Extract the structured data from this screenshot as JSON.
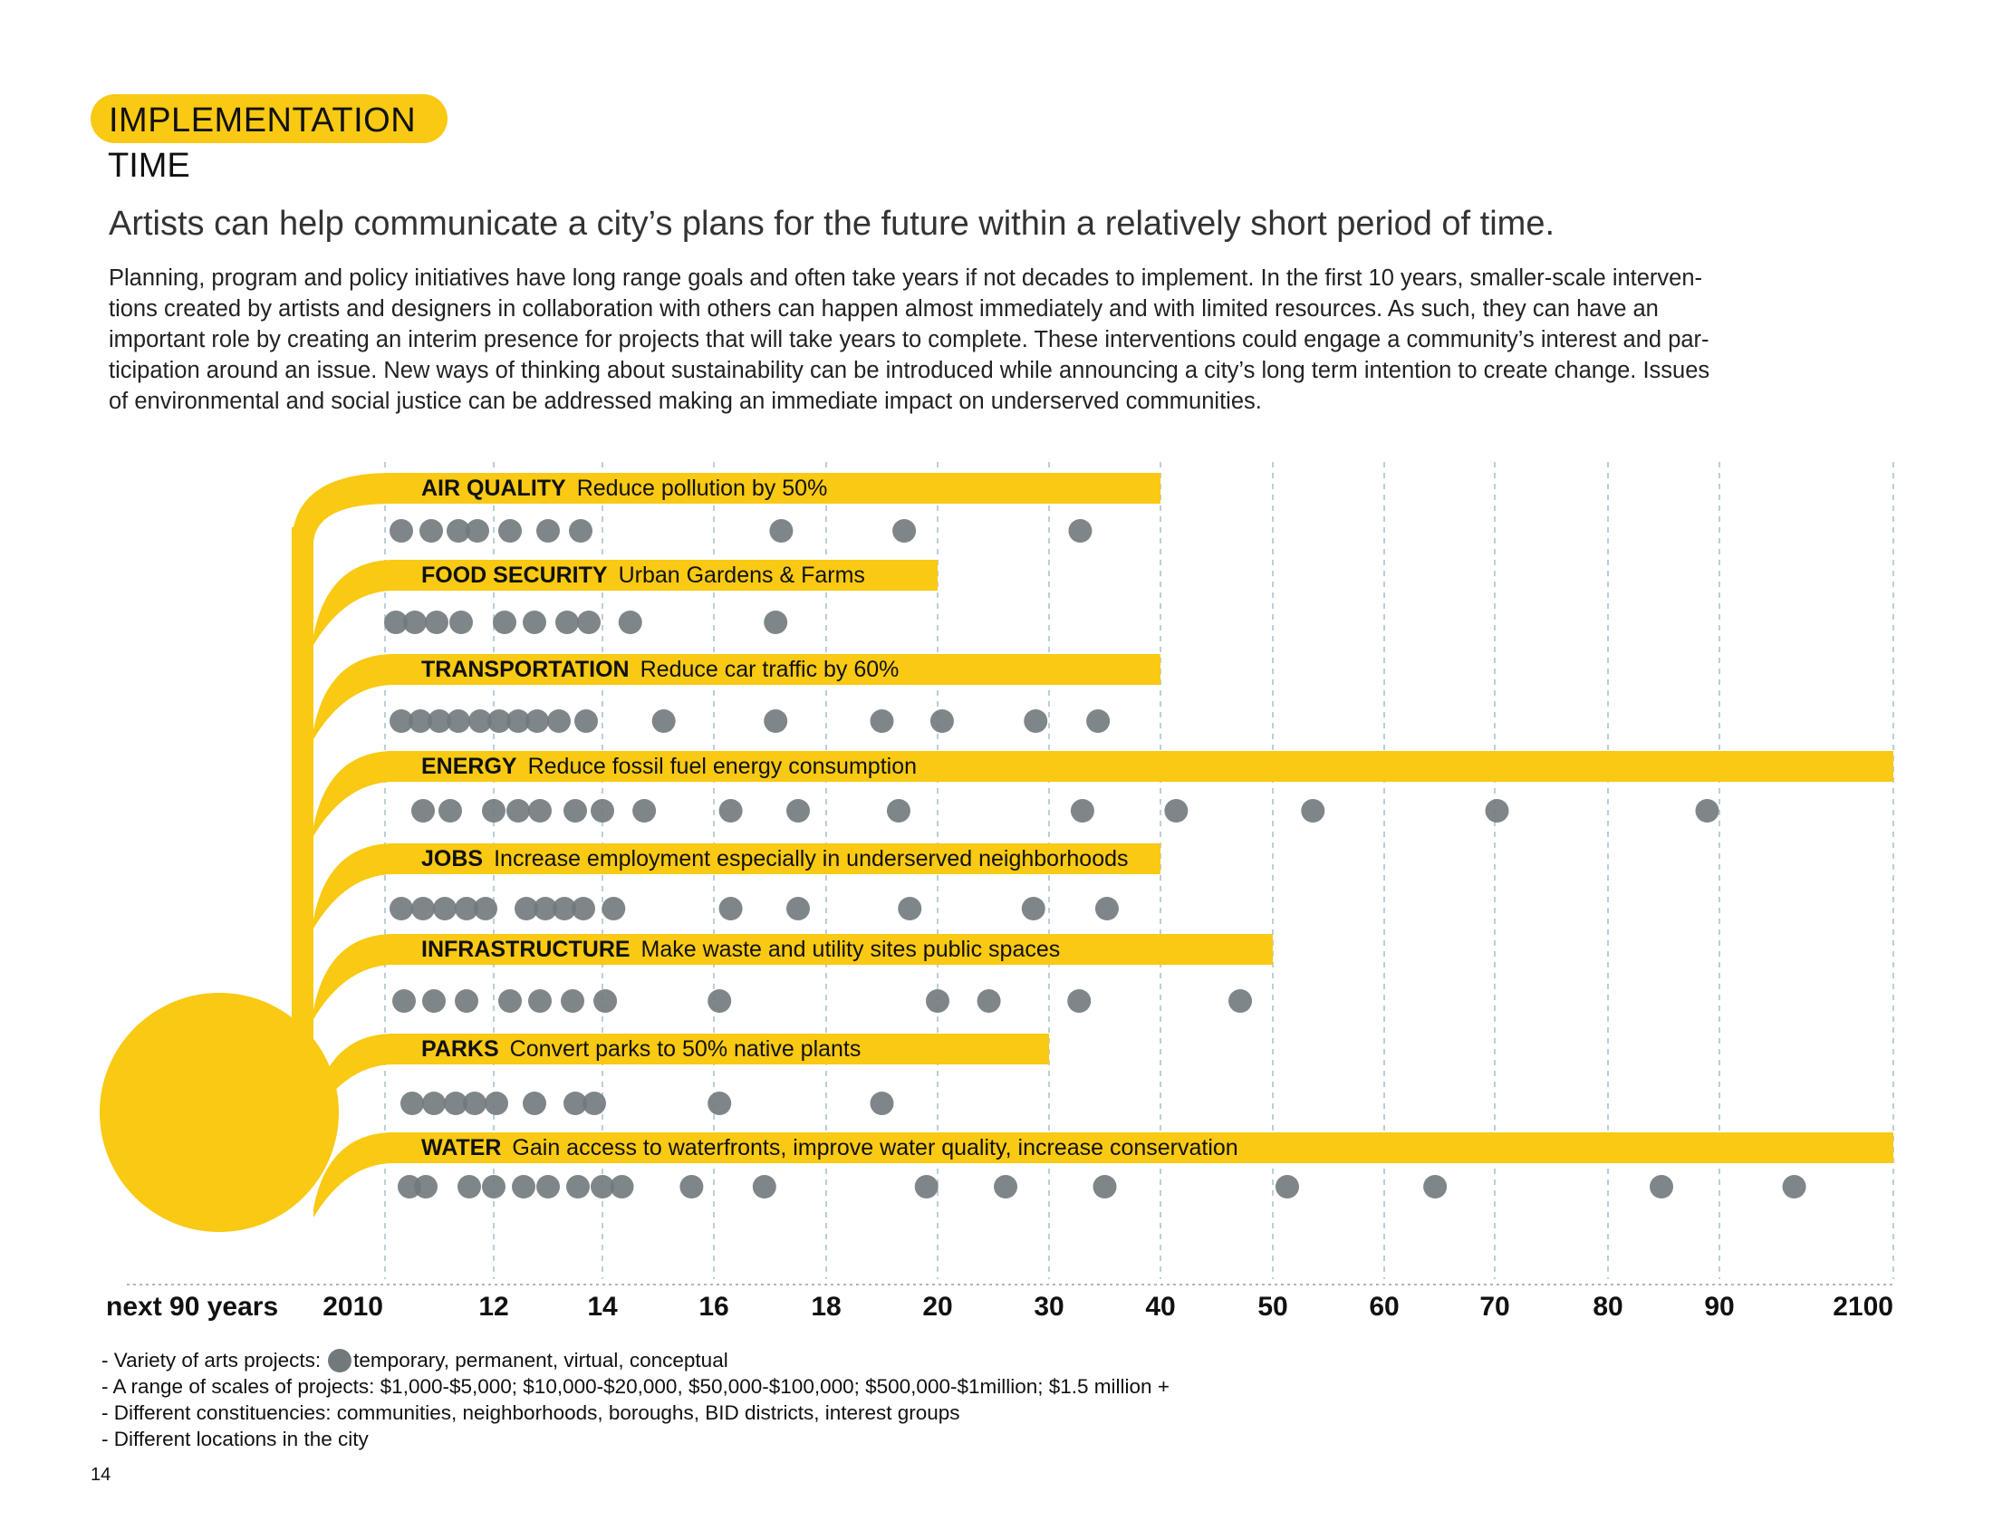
{
  "header": {
    "section": "IMPLEMENTATION",
    "subsection": "TIME"
  },
  "lead": "Artists can help communicate a city’s plans for the future within a relatively short period of time.",
  "body_lines": [
    "Planning, program and policy initiatives have long range goals and often take years if not decades to implement. In the first 10 years, smaller-scale interven-",
    "tions created by artists and designers in collaboration with others can happen almost immediately and with limited resources. As such, they can have an",
    "important role by creating an interim presence for projects that will take years to complete. These interventions could engage a community’s interest and par-",
    "ticipation around an issue. New ways of thinking about sustainability can be introduced while announcing a city’s long term intention to create change. Issues",
    "of environmental and social justice can be addressed making an immediate impact on underserved communities."
  ],
  "notes": {
    "variety_prefix": "- Variety of arts projects:",
    "variety_suffix": "temporary, permanent, virtual, conceptual",
    "scales": "- A range of scales of projects: $1,000-$5,000; $10,000-$20,000, $50,000-$100,000; $500,000-$1million; $1.5 million +",
    "constituencies": "- Different constituencies: communities, neighborhoods, boroughs, BID districts, interest groups",
    "locations": "- Different locations in the city"
  },
  "page_number": "14",
  "colors": {
    "accent": "#f9c913",
    "dot": "#71797c",
    "grid": "#a9c3cf"
  },
  "chart_data": {
    "type": "timeline",
    "axis_label": "next 90 years",
    "tick_labels": [
      "2010",
      "12",
      "14",
      "16",
      "18",
      "20",
      "30",
      "40",
      "50",
      "60",
      "70",
      "80",
      "90",
      "2100"
    ],
    "tick_years": [
      2010,
      2012,
      2014,
      2016,
      2018,
      2020,
      2030,
      2040,
      2050,
      2060,
      2070,
      2080,
      2090,
      2100
    ],
    "grid": true,
    "categories": [
      {
        "name": "AIR QUALITY",
        "goal": "Reduce pollution by 50%",
        "end_year": 2040,
        "projects": [
          2010.3,
          2010.85,
          2011.35,
          2011.7,
          2012.3,
          2013.0,
          2013.6,
          2017.2,
          2019.4,
          2032.8
        ]
      },
      {
        "name": "FOOD SECURITY",
        "goal": "Urban Gardens & Farms",
        "end_year": 2020,
        "projects": [
          2010.2,
          2010.55,
          2010.95,
          2011.4,
          2012.2,
          2012.75,
          2013.35,
          2013.75,
          2014.5,
          2017.1
        ]
      },
      {
        "name": "TRANSPORTATION",
        "goal": "Reduce car traffic by 60%",
        "end_year": 2040,
        "projects": [
          2010.3,
          2010.65,
          2011.0,
          2011.35,
          2011.75,
          2012.1,
          2012.45,
          2012.8,
          2013.2,
          2013.7,
          2015.1,
          2017.1,
          2019.0,
          2020.4,
          2028.8,
          2034.4
        ]
      },
      {
        "name": "ENERGY",
        "goal": "Reduce fossil fuel energy consumption",
        "end_year": 2100,
        "projects": [
          2010.7,
          2011.2,
          2012.0,
          2012.45,
          2012.85,
          2013.5,
          2014.0,
          2014.75,
          2016.3,
          2017.5,
          2019.3,
          2033.0,
          2041.4,
          2053.6,
          2070.2,
          2088.9
        ]
      },
      {
        "name": "JOBS",
        "goal": "Increase employment especially in underserved neighborhoods",
        "end_year": 2040,
        "projects": [
          2010.3,
          2010.7,
          2011.1,
          2011.5,
          2011.85,
          2012.6,
          2012.95,
          2013.3,
          2013.65,
          2014.2,
          2016.3,
          2017.5,
          2019.5,
          2028.6,
          2035.2
        ]
      },
      {
        "name": "INFRASTRUCTURE",
        "goal": "Make waste and utility sites public spaces",
        "end_year": 2050,
        "projects": [
          2010.35,
          2010.9,
          2011.5,
          2012.3,
          2012.85,
          2013.45,
          2014.05,
          2016.1,
          2020.0,
          2024.6,
          2032.7,
          2047.1
        ]
      },
      {
        "name": "PARKS",
        "goal": "Convert parks to 50% native plants",
        "end_year": 2030,
        "projects": [
          2010.5,
          2010.9,
          2011.3,
          2011.65,
          2012.05,
          2012.75,
          2013.5,
          2013.85,
          2016.1,
          2019.0
        ]
      },
      {
        "name": "WATER",
        "goal": "Gain access to waterfronts, improve water quality, increase conservation",
        "end_year": 2100,
        "projects": [
          2010.45,
          2010.75,
          2011.55,
          2012.0,
          2012.55,
          2013.0,
          2013.55,
          2014.0,
          2014.35,
          2015.6,
          2016.9,
          2019.8,
          2026.1,
          2035.0,
          2051.3,
          2064.6,
          2084.8,
          2094.3
        ]
      }
    ]
  }
}
